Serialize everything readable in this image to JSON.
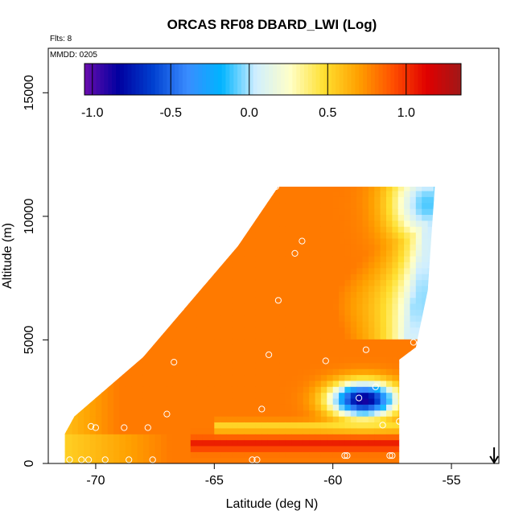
{
  "chart_data": {
    "type": "heatmap",
    "title": "ORCAS RF08 DBARD_LWI (Log)",
    "xlabel": "Latitude (deg N)",
    "ylabel": "Altitude (m)",
    "xlim": [
      -72,
      -53
    ],
    "ylim": [
      0,
      16800
    ],
    "x_ticks": [
      "-70",
      "-65",
      "-60",
      "-55"
    ],
    "y_ticks": [
      "0",
      "5000",
      "10000",
      "15000"
    ],
    "annotations": {
      "flights": "Flts: 8",
      "date": "MMDD: 0205"
    },
    "colorbar": {
      "range": [
        -1.05,
        1.35
      ],
      "ticks": [
        "-1.0",
        "-0.5",
        "0.0",
        "0.5",
        "1.0"
      ],
      "colors": [
        "#6a0dad",
        "#0000a0",
        "#0040d0",
        "#3a8cff",
        "#00b4ff",
        "#cfeeff",
        "#ffffc8",
        "#ffe030",
        "#ffa000",
        "#ff5000",
        "#e00000",
        "#a01818"
      ]
    },
    "data_region": {
      "polygon": [
        [
          -71.3,
          0
        ],
        [
          -71.3,
          1200
        ],
        [
          -70.9,
          1900
        ],
        [
          -68,
          4300
        ],
        [
          -64,
          8800
        ],
        [
          -62.3,
          11200
        ],
        [
          -55.7,
          11200
        ],
        [
          -56,
          7000
        ],
        [
          -56.5,
          4700
        ],
        [
          -57.2,
          4200
        ],
        [
          -57.2,
          0
        ]
      ]
    },
    "features": [
      {
        "kind": "minimum",
        "lat": -58.7,
        "alt": 2600,
        "value": -0.9
      },
      {
        "kind": "blue-upper-corner",
        "lat": -56.0,
        "alt": 10500,
        "value": -0.1
      },
      {
        "kind": "red-band-near-surface",
        "lat": -60.0,
        "alt": 800,
        "value": 1.1
      }
    ],
    "flight_points": [
      {
        "lat": -62.4,
        "alt": 11200
      },
      {
        "lat": -61.3,
        "alt": 9000
      },
      {
        "lat": -61.6,
        "alt": 8500
      },
      {
        "lat": -62.3,
        "alt": 6600
      },
      {
        "lat": -66.4,
        "alt": 6300
      },
      {
        "lat": -62.7,
        "alt": 4400
      },
      {
        "lat": -60.3,
        "alt": 4150
      },
      {
        "lat": -58.6,
        "alt": 4600
      },
      {
        "lat": -56.6,
        "alt": 4900
      },
      {
        "lat": -66.7,
        "alt": 4100
      },
      {
        "lat": -58.2,
        "alt": 3100
      },
      {
        "lat": -58.9,
        "alt": 2650
      },
      {
        "lat": -63.0,
        "alt": 2200
      },
      {
        "lat": -67.0,
        "alt": 2000
      },
      {
        "lat": -57.9,
        "alt": 1550
      },
      {
        "lat": -57.2,
        "alt": 1700
      },
      {
        "lat": -70.0,
        "alt": 1450
      },
      {
        "lat": -68.8,
        "alt": 1450
      },
      {
        "lat": -67.8,
        "alt": 1450
      },
      {
        "lat": -70.2,
        "alt": 1500
      },
      {
        "lat": -71.1,
        "alt": 150
      },
      {
        "lat": -70.6,
        "alt": 150
      },
      {
        "lat": -70.3,
        "alt": 150
      },
      {
        "lat": -69.6,
        "alt": 150
      },
      {
        "lat": -68.6,
        "alt": 150
      },
      {
        "lat": -67.6,
        "alt": 150
      },
      {
        "lat": -63.4,
        "alt": 150
      },
      {
        "lat": -63.2,
        "alt": 150
      },
      {
        "lat": -59.4,
        "alt": 320
      },
      {
        "lat": -59.5,
        "alt": 320
      },
      {
        "lat": -57.6,
        "alt": 320
      },
      {
        "lat": -57.5,
        "alt": 320
      }
    ],
    "end_marker": {
      "lat": -53.2,
      "icon": "down-arrow-icon"
    }
  }
}
